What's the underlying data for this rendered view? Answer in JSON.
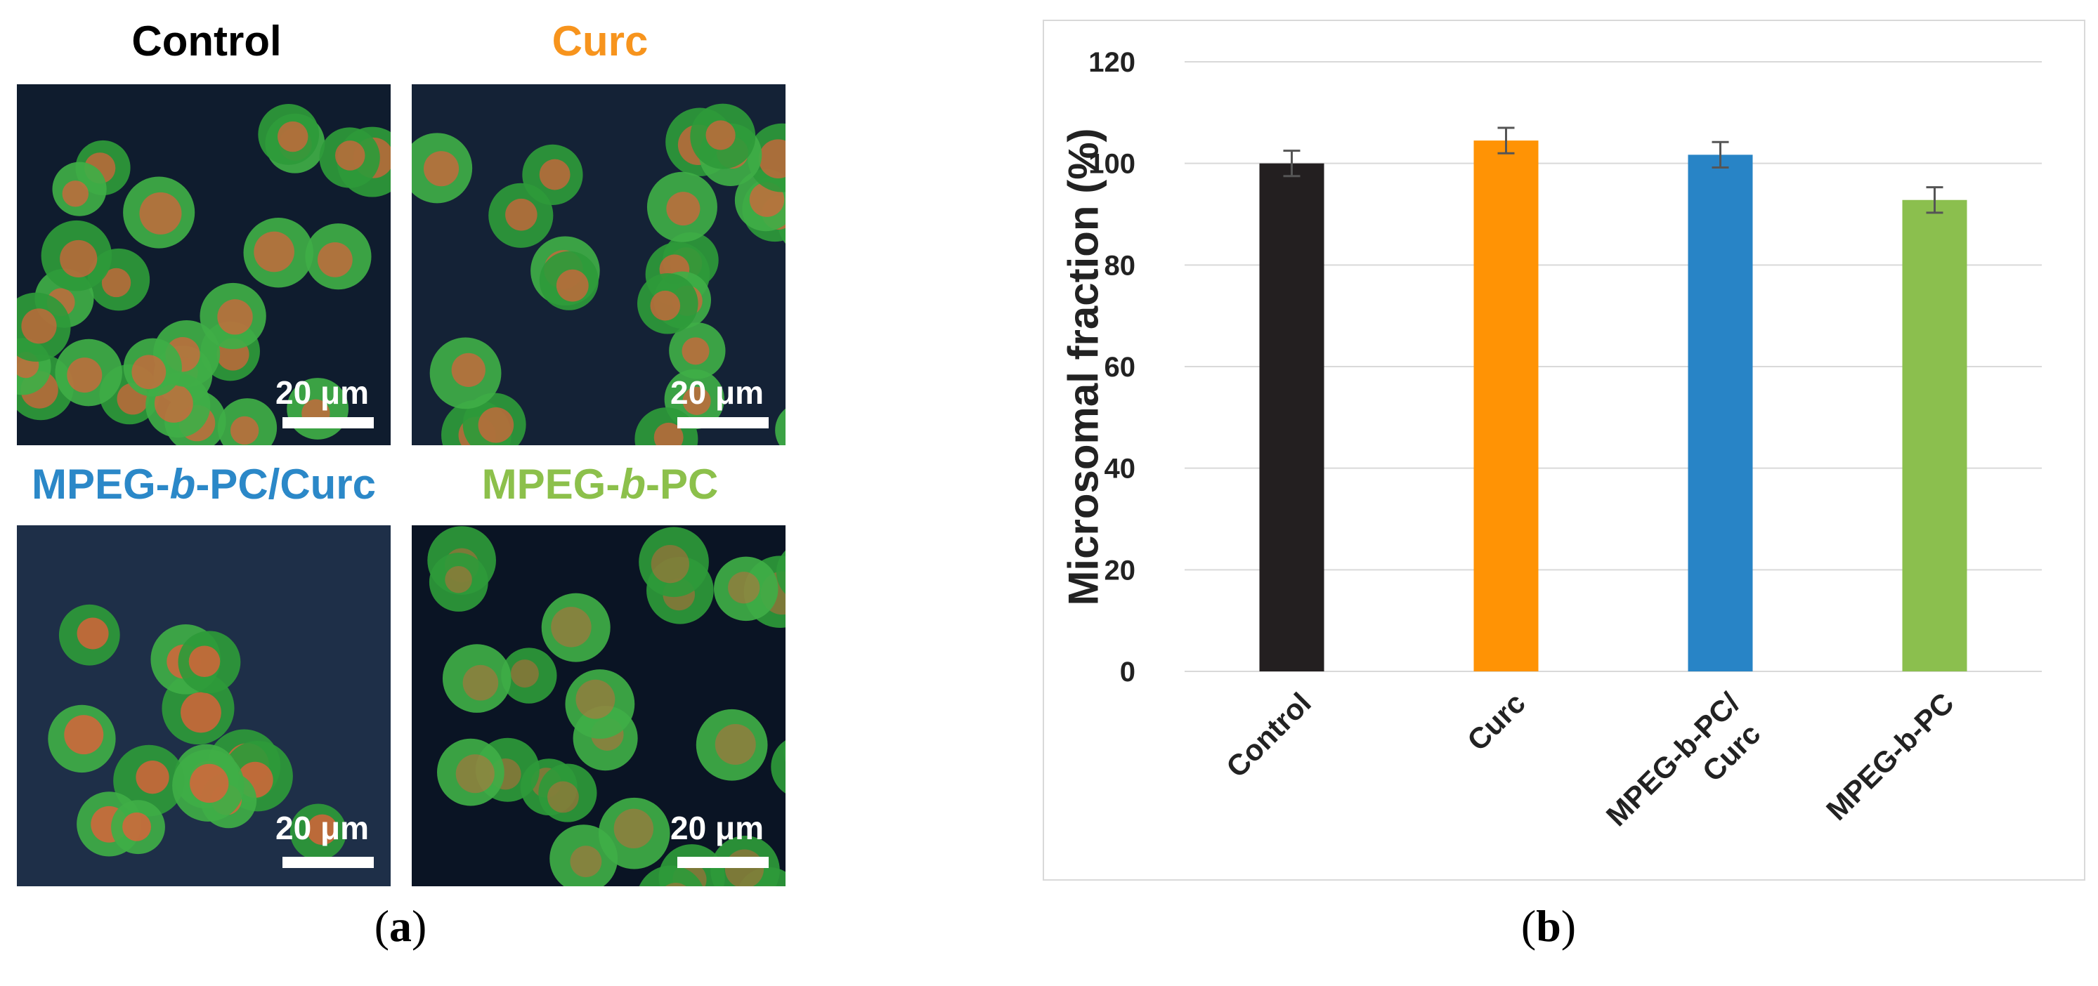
{
  "panels": {
    "control": {
      "title": "Control",
      "color": "#000000",
      "scale": "20 μm"
    },
    "curc": {
      "title": "Curc",
      "color": "#f7941d",
      "scale": "20 μm"
    },
    "mpeg_curc": {
      "title_a": "MPEG-",
      "title_b": "b",
      "title_c": "-PC/Curc",
      "color": "#2b88c8",
      "scale": "20 μm"
    },
    "mpeg": {
      "title_a": "MPEG-",
      "title_b": "b",
      "title_c": "-PC",
      "color": "#8cc04b",
      "scale": "20 μm"
    }
  },
  "figure_labels": {
    "a_open": "(",
    "a": "a",
    "a_close": ")",
    "b_open": "(",
    "b": "b",
    "b_close": ")"
  },
  "chart_data": {
    "type": "bar",
    "categories": [
      "Control",
      "Curc",
      "MPEG-b-PC/\nCurc",
      "MPEG-b-PC"
    ],
    "values": [
      100,
      104.5,
      101.7,
      92.8
    ],
    "errors": [
      2.5,
      2.5,
      2.5,
      2.5
    ],
    "colors": [
      "#231f20",
      "#ff9305",
      "#2884c6",
      "#8bbf4e"
    ],
    "ylabel": "Microsomal fraction (%)",
    "ylim": [
      0,
      120
    ],
    "yticks": [
      0,
      20,
      40,
      60,
      80,
      100,
      120
    ],
    "grid": true
  }
}
